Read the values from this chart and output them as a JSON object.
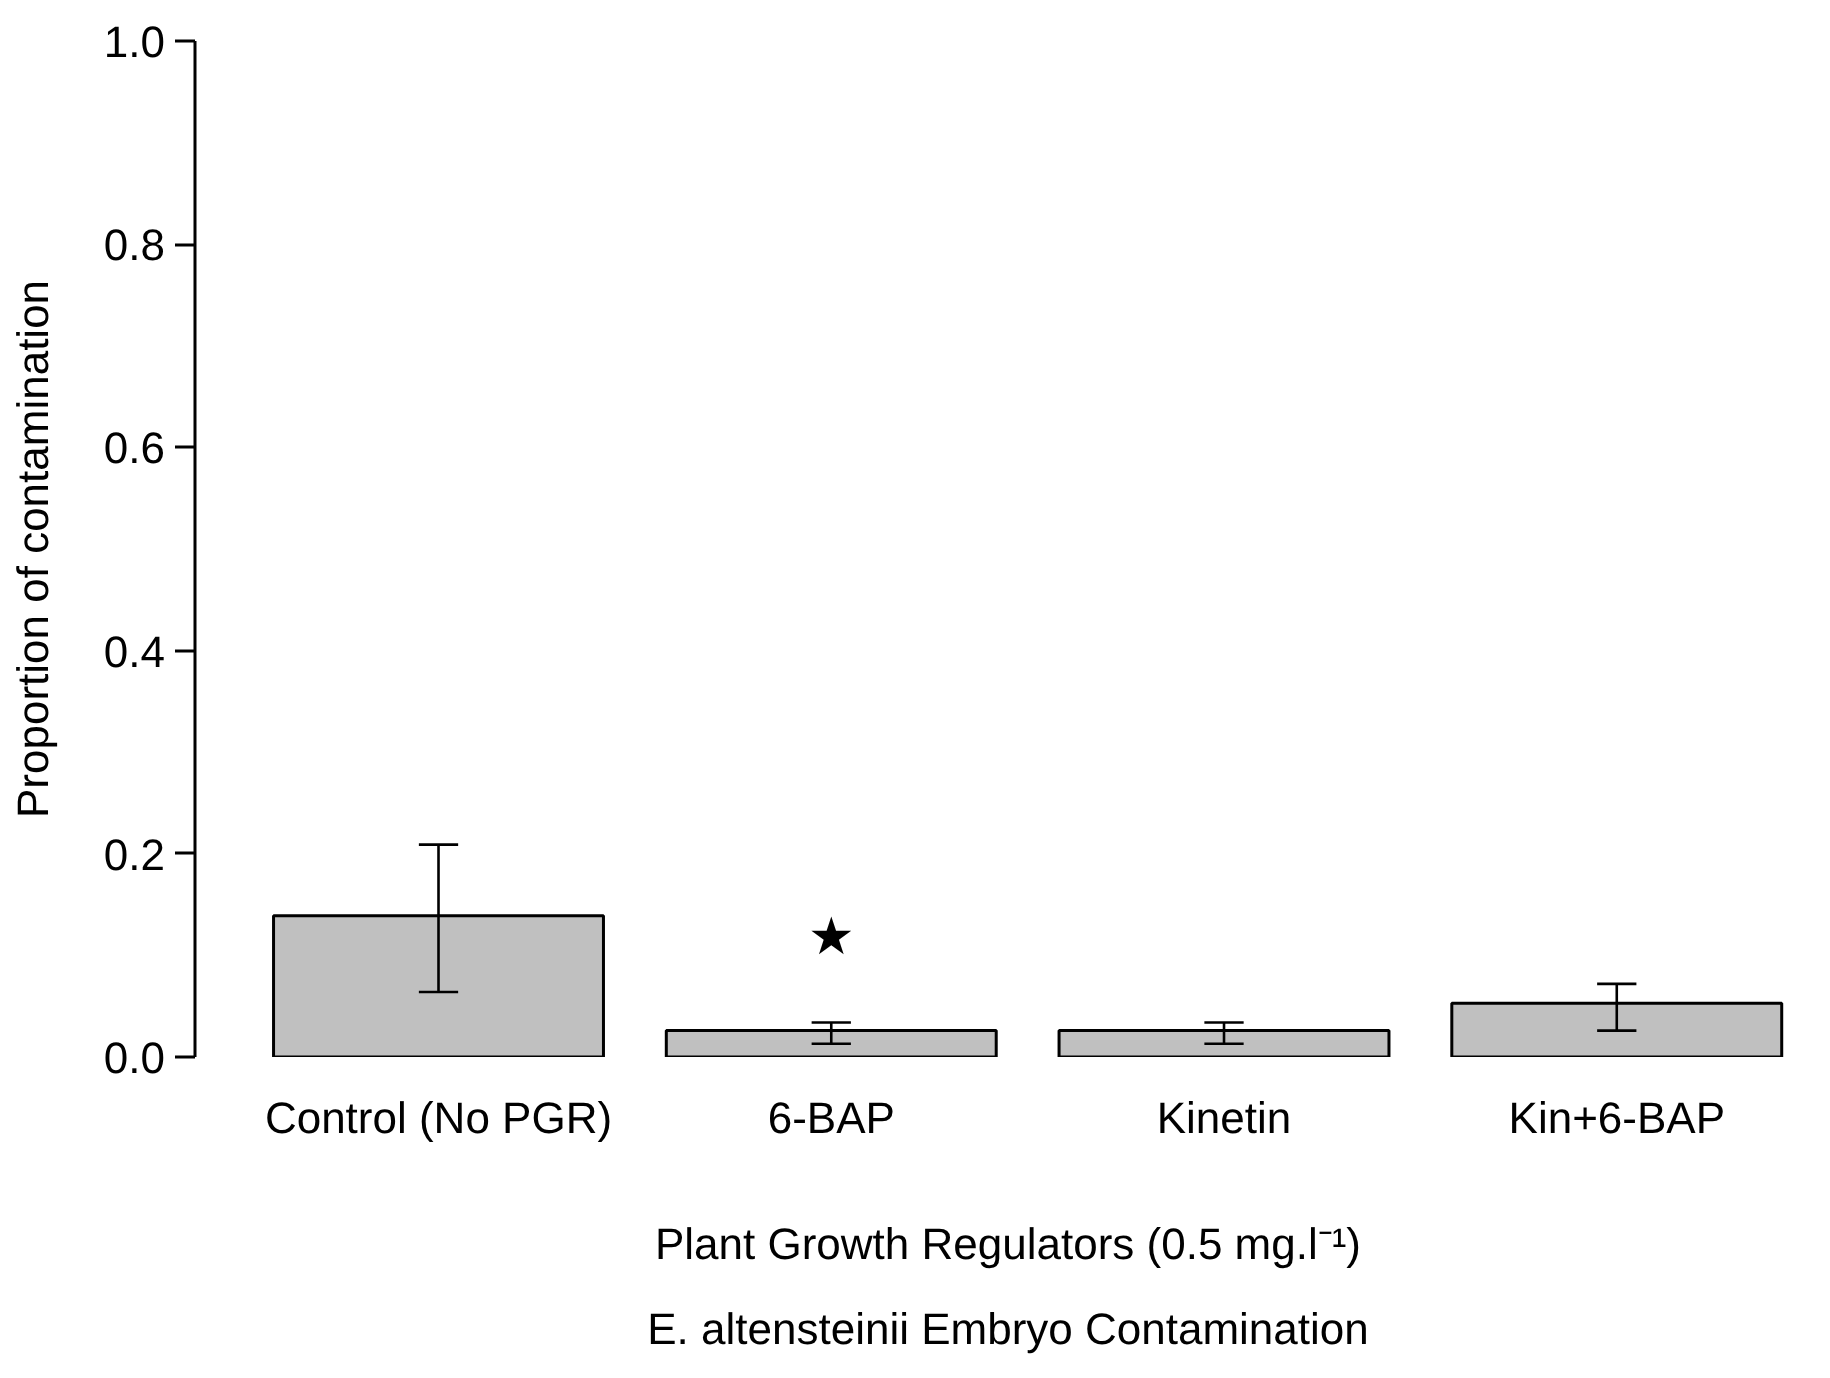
{
  "chart_data": {
    "type": "bar",
    "title": "E. altensteinii Embryo Contamination",
    "xlabel": "Plant Growth Regulators (0.5 mg.l⁻¹)",
    "ylabel": "Proportion of contamination",
    "categories": [
      "Control (No PGR)",
      "6-BAP",
      "Kinetin",
      "Kin+6-BAP"
    ],
    "values": [
      0.139,
      0.026,
      0.026,
      0.053
    ],
    "errors": [
      [
        0.064,
        0.209
      ],
      [
        0.013,
        0.034
      ],
      [
        0.013,
        0.034
      ],
      [
        0.026,
        0.072
      ]
    ],
    "color": "#c0c0c0",
    "ylim": [
      0,
      1.0
    ],
    "yticks": [
      {
        "value": 0,
        "label": "0.0"
      },
      {
        "value": 0.2,
        "label": "0.2"
      },
      {
        "value": 0.4,
        "label": "0.4"
      },
      {
        "value": 0.6,
        "label": "0.6"
      },
      {
        "value": 0.8,
        "label": "0.8"
      },
      {
        "value": 1.0,
        "label": "1.0"
      }
    ],
    "annotations": [
      "★"
    ],
    "grid": false
  }
}
